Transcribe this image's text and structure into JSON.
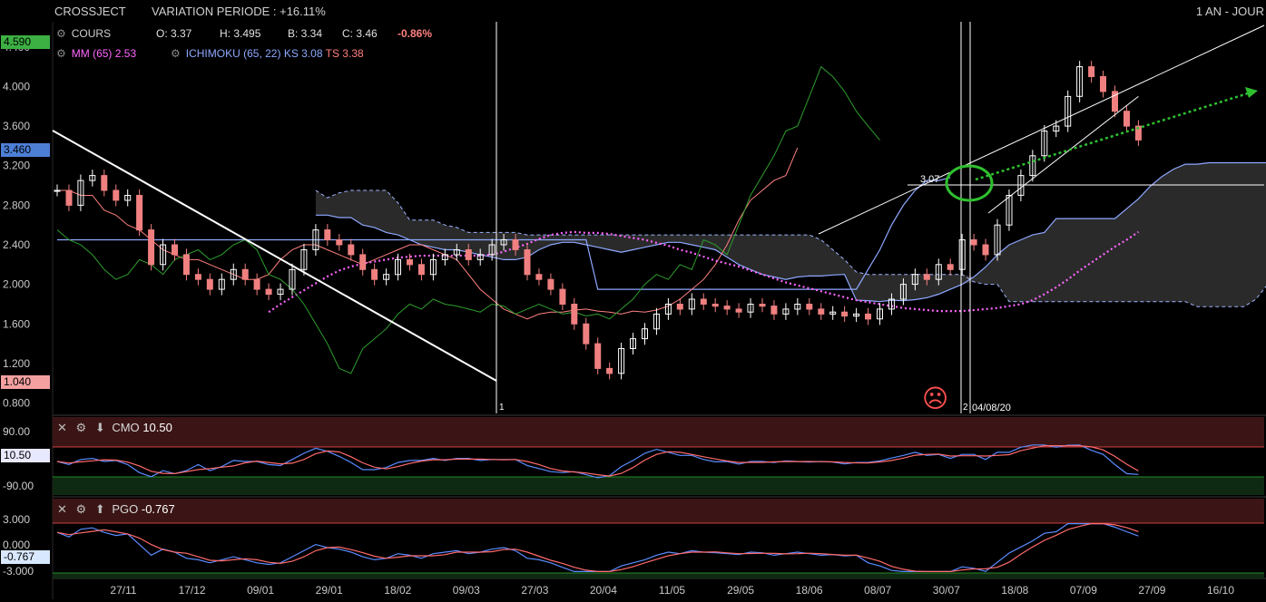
{
  "header": {
    "symbol": "CROSSJECT",
    "variation": "VARIATION PERIODE : +16.11%",
    "period": "1 AN - JOUR"
  },
  "legend": {
    "cours_label": "COURS",
    "open": "O: 3.37",
    "high": "H: 3.495",
    "low": "B: 3.34",
    "close": "C: 3.46",
    "change": "-0.86%",
    "mm_label": "MM (65)",
    "mm_value": "2.53",
    "ichimoku_label": "ICHIMOKU (65, 22)",
    "ks_value": "KS 3.08",
    "ts_value": "TS 3.38"
  },
  "colors": {
    "up": "#ffffff",
    "down": "#f08080",
    "mm": "#ff66ff",
    "ichimoku": "#8ea8ff",
    "tenkan": "#ff8080",
    "chikou": "#2e9e2e",
    "green_highlight": "#2fbf2f"
  },
  "annotations": {
    "level_label": "3.07",
    "marker1": "1",
    "marker2": "2",
    "marker2_date": "04/08/20",
    "sad_face": "☹"
  },
  "price_tags": {
    "top": "4.590",
    "current": "3.460",
    "bottom": "1.040"
  },
  "cmo": {
    "label": "CMO",
    "value": "10.50",
    "tag": "10.50",
    "ticks": [
      "90.00",
      "-90.00"
    ]
  },
  "pgo": {
    "label": "PGO",
    "value": "-0.767",
    "tag": "-0.767",
    "ticks": [
      "3.000",
      "0.000",
      "-3.000"
    ]
  },
  "chart_data": {
    "type": "line",
    "title": "CROSSJECT",
    "y_ticks": [
      4.4,
      4.0,
      3.6,
      3.2,
      2.8,
      2.4,
      2.0,
      1.6,
      1.2,
      0.8
    ],
    "ylim": [
      0.75,
      4.6
    ],
    "x_ticks": [
      "27/11",
      "17/12",
      "09/01",
      "29/01",
      "18/02",
      "09/03",
      "27/03",
      "20/04",
      "11/05",
      "29/05",
      "18/06",
      "08/07",
      "30/07",
      "18/08",
      "07/09",
      "27/09",
      "16/10"
    ],
    "close": [
      2.95,
      2.8,
      3.05,
      3.1,
      2.95,
      2.85,
      2.9,
      2.55,
      2.2,
      2.4,
      2.3,
      2.1,
      2.05,
      1.95,
      2.05,
      2.15,
      2.05,
      1.95,
      1.9,
      1.95,
      2.15,
      2.35,
      2.55,
      2.45,
      2.4,
      2.3,
      2.15,
      2.05,
      2.1,
      2.25,
      2.2,
      2.1,
      2.25,
      2.3,
      2.35,
      2.25,
      2.3,
      2.4,
      2.45,
      2.35,
      2.1,
      2.05,
      1.95,
      1.8,
      1.6,
      1.4,
      1.15,
      1.1,
      1.35,
      1.45,
      1.55,
      1.7,
      1.8,
      1.75,
      1.85,
      1.8,
      1.78,
      1.75,
      1.72,
      1.8,
      1.78,
      1.7,
      1.75,
      1.8,
      1.75,
      1.7,
      1.72,
      1.68,
      1.7,
      1.65,
      1.75,
      1.85,
      2.0,
      2.1,
      2.05,
      2.2,
      2.15,
      2.45,
      2.4,
      2.3,
      2.6,
      2.9,
      3.1,
      3.3,
      3.55,
      3.6,
      3.9,
      4.2,
      4.1,
      3.95,
      3.75,
      3.6,
      3.46
    ],
    "mm65": [
      1.72,
      1.8,
      1.87,
      1.94,
      2.01,
      2.08,
      2.14,
      2.18,
      2.21,
      2.23,
      2.25,
      2.27,
      2.28,
      2.29,
      2.29,
      2.29,
      2.29,
      2.29,
      2.29,
      2.3,
      2.33,
      2.37,
      2.41,
      2.46,
      2.5,
      2.52,
      2.53,
      2.52,
      2.52,
      2.51,
      2.49,
      2.47,
      2.45,
      2.42,
      2.39,
      2.35,
      2.32,
      2.28,
      2.24,
      2.21,
      2.18,
      2.14,
      2.1,
      2.06,
      2.02,
      1.99,
      1.96,
      1.93,
      1.9,
      1.87,
      1.84,
      1.82,
      1.8,
      1.78,
      1.76,
      1.75,
      1.74,
      1.73,
      1.73,
      1.73,
      1.74,
      1.75,
      1.76,
      1.78,
      1.8,
      1.84,
      1.9,
      1.97,
      2.05,
      2.14,
      2.22,
      2.3,
      2.38,
      2.45,
      2.53
    ],
    "kijun": [
      2.45,
      2.45,
      2.45,
      2.45,
      2.45,
      2.45,
      2.45,
      2.45,
      2.45,
      2.45,
      2.45,
      2.45,
      2.45,
      2.45,
      2.45,
      2.45,
      2.45,
      2.45,
      2.45,
      2.45,
      2.45,
      2.45,
      2.45,
      2.45,
      2.45,
      2.45,
      2.45,
      2.45,
      2.45,
      2.45,
      2.45,
      2.45,
      2.45,
      2.45,
      2.45,
      2.45,
      2.45,
      2.45,
      2.45,
      2.45,
      2.45,
      2.45,
      2.45,
      2.45,
      2.45,
      2.45,
      1.95,
      1.95,
      1.95,
      1.95,
      1.95,
      1.95,
      1.95,
      1.95,
      1.95,
      1.95,
      1.95,
      1.95,
      1.95,
      1.95,
      1.95,
      1.95,
      1.95,
      1.95,
      1.95,
      1.95,
      1.95,
      1.95,
      1.95,
      2.15,
      2.35,
      2.6,
      2.8,
      2.95,
      3.05,
      3.05,
      3.08
    ],
    "tenkan": [
      2.95,
      2.95,
      2.9,
      2.9,
      2.75,
      2.7,
      2.6,
      2.55,
      2.45,
      2.35,
      2.3,
      2.25,
      2.25,
      2.2,
      2.15,
      2.1,
      2.05,
      2.05,
      2.1,
      2.25,
      2.35,
      2.4,
      2.4,
      2.35,
      2.3,
      2.25,
      2.2,
      2.25,
      2.3,
      2.35,
      2.4,
      2.4,
      2.35,
      2.3,
      2.25,
      2.1,
      1.95,
      1.85,
      1.75,
      1.7,
      1.65,
      1.7,
      1.72,
      1.72,
      1.74,
      1.75,
      1.73,
      1.72,
      1.7,
      1.73,
      1.72,
      1.74,
      1.78,
      1.85,
      1.95,
      2.05,
      2.2,
      2.4,
      2.65,
      2.85,
      2.95,
      3.05,
      3.1,
      3.38
    ]
  }
}
